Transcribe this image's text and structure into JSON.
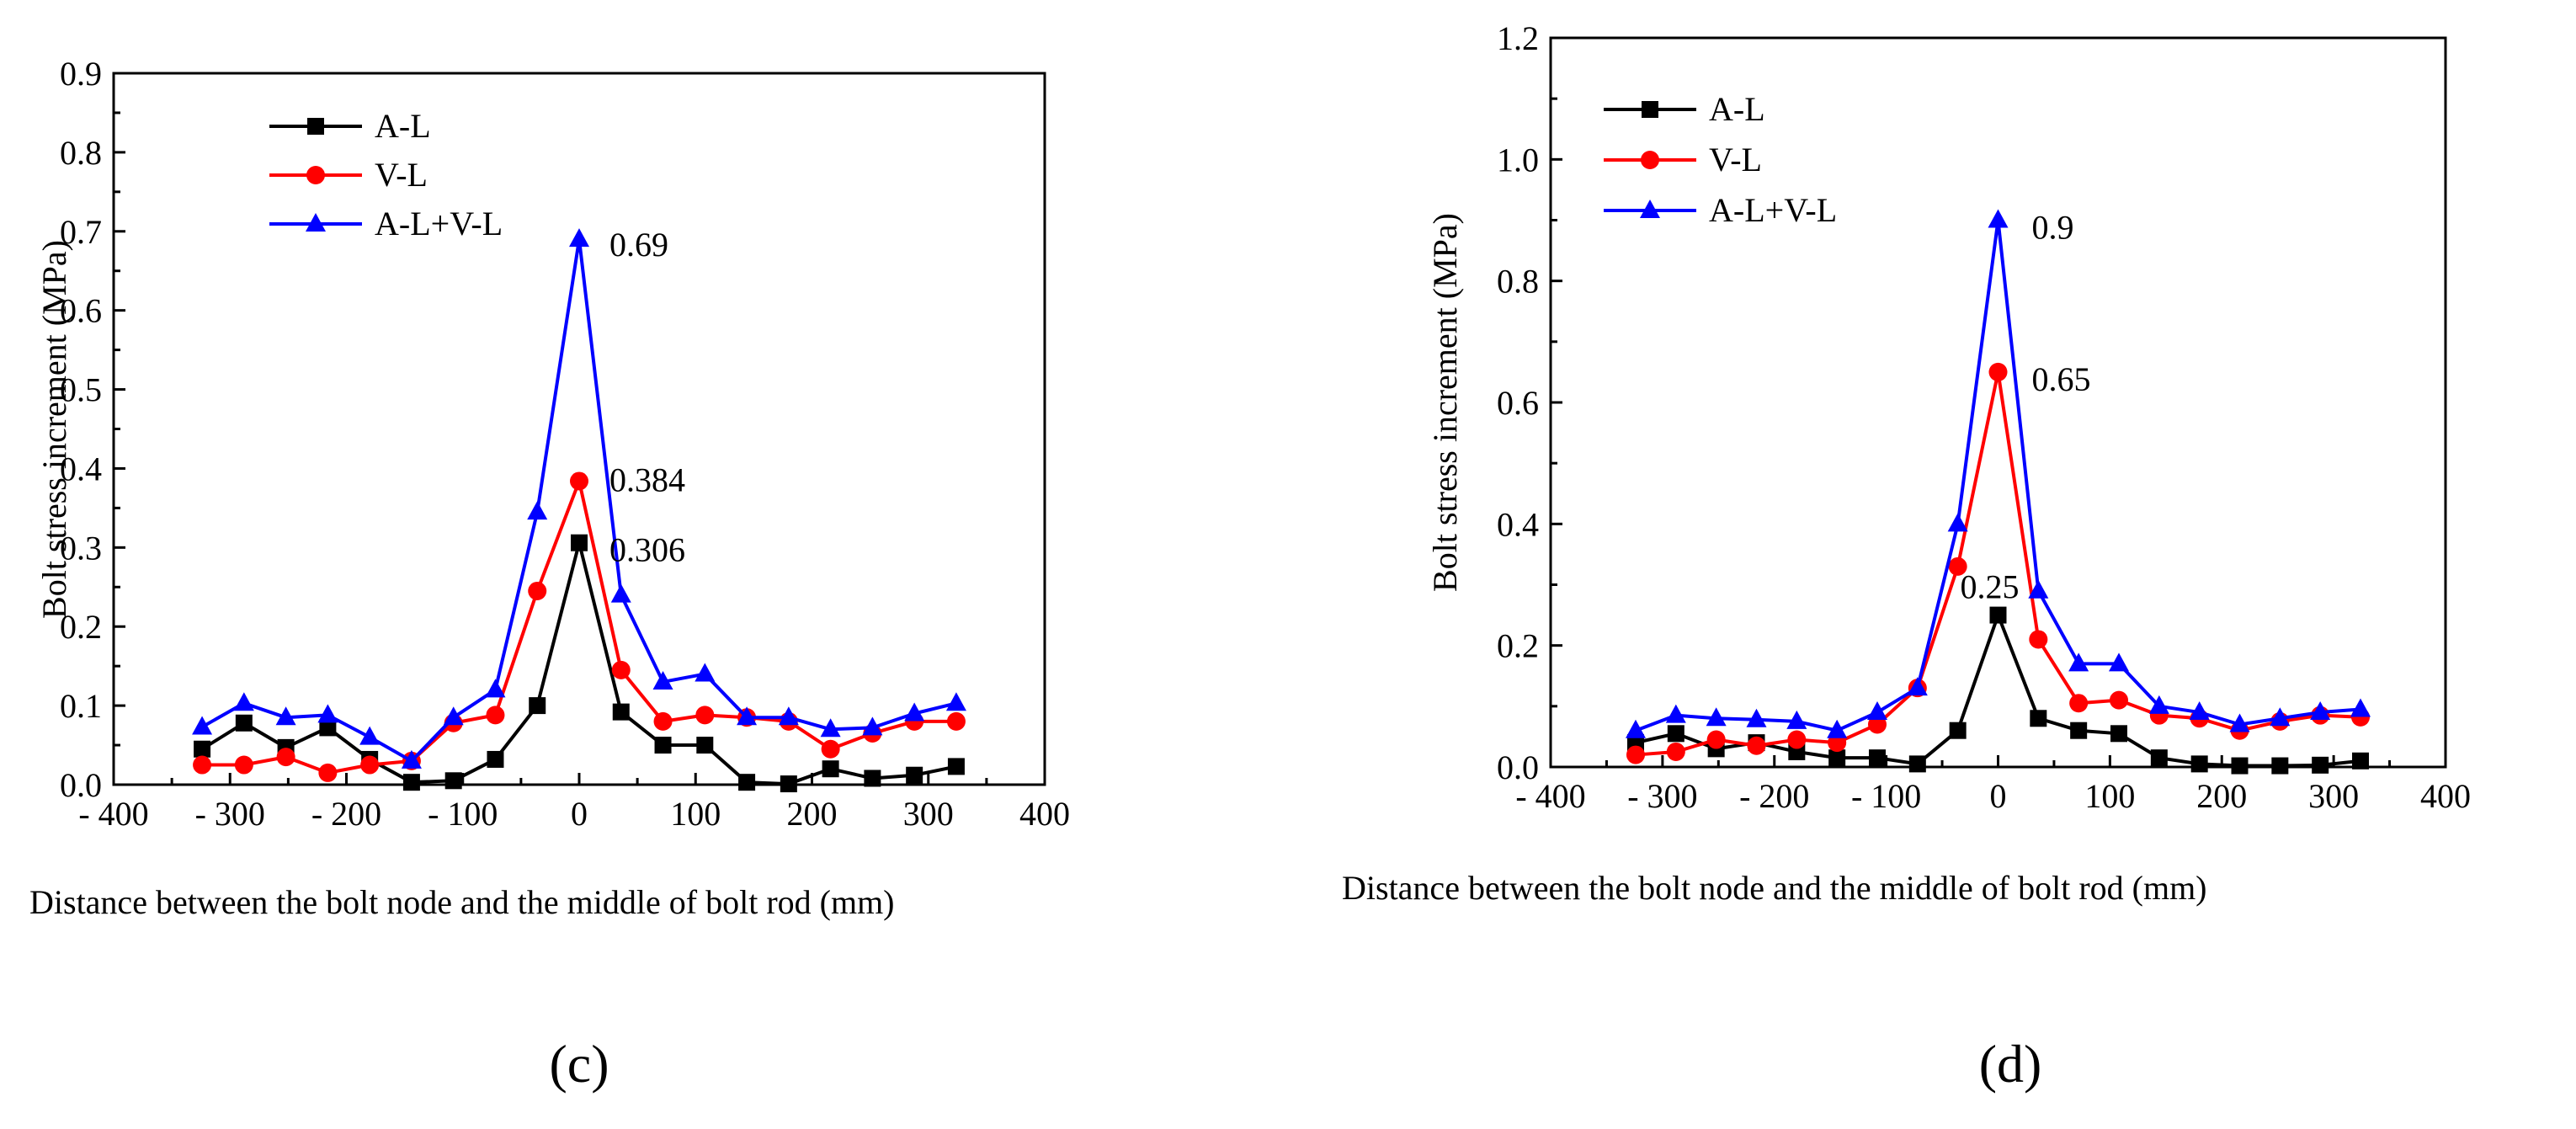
{
  "chart_data": [
    {
      "type": "line",
      "panel_label": "(c)",
      "xlabel": "Distance between the bolt node and the middle of bolt rod (mm)",
      "ylabel": "Bolt stress increment (MPa)",
      "xlim": [
        -400,
        400
      ],
      "ylim": [
        0,
        0.9
      ],
      "xticks": [
        -400,
        -300,
        -200,
        -100,
        0,
        100,
        200,
        300,
        400
      ],
      "xtick_labels": [
        "- 400",
        "- 300",
        "- 200",
        "- 100",
        "0",
        "100",
        "200",
        "300",
        "400"
      ],
      "yticks": [
        0,
        0.1,
        0.2,
        0.3,
        0.4,
        0.5,
        0.6,
        0.7,
        0.8,
        0.9
      ],
      "ytick_labels": [
        "0.0",
        "0.1",
        "0.2",
        "0.3",
        "0.4",
        "0.5",
        "0.6",
        "0.7",
        "0.8",
        "0.9"
      ],
      "legend_position": "top-left",
      "x": [
        -324,
        -288,
        -252,
        -216,
        -180,
        -144,
        -108,
        -72,
        -36,
        0,
        36,
        72,
        108,
        144,
        180,
        216,
        252,
        288,
        324
      ],
      "series": [
        {
          "name": "A-L",
          "color": "#000000",
          "marker": "square",
          "values": [
            0.045,
            0.078,
            0.047,
            0.072,
            0.032,
            0.003,
            0.005,
            0.032,
            0.1,
            0.306,
            0.092,
            0.05,
            0.05,
            0.003,
            0.001,
            0.02,
            0.008,
            0.012,
            0.023
          ]
        },
        {
          "name": "V-L",
          "color": "#ff0000",
          "marker": "circle",
          "values": [
            0.025,
            0.025,
            0.035,
            0.015,
            0.025,
            0.03,
            0.078,
            0.088,
            0.245,
            0.384,
            0.145,
            0.08,
            0.088,
            0.085,
            0.08,
            0.045,
            0.065,
            0.08,
            0.08
          ]
        },
        {
          "name": "A-L+V-L",
          "color": "#0000ff",
          "marker": "triangle",
          "values": [
            0.073,
            0.103,
            0.085,
            0.088,
            0.06,
            0.03,
            0.085,
            0.12,
            0.345,
            0.69,
            0.24,
            0.13,
            0.14,
            0.085,
            0.085,
            0.07,
            0.072,
            0.09,
            0.103
          ]
        }
      ],
      "annotations": [
        {
          "text": "0.69",
          "x": 0,
          "y": 0.69
        },
        {
          "text": "0.384",
          "x": 0,
          "y": 0.384
        },
        {
          "text": "0.306",
          "x": 0,
          "y": 0.306
        }
      ]
    },
    {
      "type": "line",
      "panel_label": "(d)",
      "xlabel": "Distance between the bolt node and the middle of bolt rod (mm)",
      "ylabel": "Bolt stress increment (MPa)",
      "xlim": [
        -400,
        400
      ],
      "ylim": [
        0,
        1.2
      ],
      "xticks": [
        -400,
        -300,
        -200,
        -100,
        0,
        100,
        200,
        300,
        400
      ],
      "xtick_labels": [
        "- 400",
        "- 300",
        "- 200",
        "- 100",
        "0",
        "100",
        "200",
        "300",
        "400"
      ],
      "yticks": [
        0,
        0.2,
        0.4,
        0.6,
        0.8,
        1.0,
        1.2
      ],
      "ytick_labels": [
        "0.0",
        "0.2",
        "0.4",
        "0.6",
        "0.8",
        "1.0",
        "1.2"
      ],
      "legend_position": "top-left",
      "x": [
        -324,
        -288,
        -252,
        -216,
        -180,
        -144,
        -108,
        -72,
        -36,
        0,
        36,
        72,
        108,
        144,
        180,
        216,
        252,
        288,
        324
      ],
      "series": [
        {
          "name": "A-L",
          "color": "#000000",
          "marker": "square",
          "values": [
            0.04,
            0.055,
            0.03,
            0.04,
            0.025,
            0.015,
            0.015,
            0.005,
            0.06,
            0.25,
            0.08,
            0.06,
            0.055,
            0.015,
            0.005,
            0.002,
            0.002,
            0.003,
            0.01
          ]
        },
        {
          "name": "V-L",
          "color": "#ff0000",
          "marker": "circle",
          "values": [
            0.02,
            0.025,
            0.045,
            0.035,
            0.045,
            0.04,
            0.07,
            0.13,
            0.33,
            0.65,
            0.21,
            0.105,
            0.11,
            0.085,
            0.08,
            0.06,
            0.075,
            0.085,
            0.082
          ]
        },
        {
          "name": "A-L+V-L",
          "color": "#0000ff",
          "marker": "triangle",
          "values": [
            0.06,
            0.085,
            0.08,
            0.078,
            0.075,
            0.06,
            0.09,
            0.13,
            0.4,
            0.9,
            0.29,
            0.17,
            0.17,
            0.1,
            0.09,
            0.07,
            0.08,
            0.09,
            0.095
          ]
        }
      ],
      "annotations": [
        {
          "text": "0.9",
          "x": 0,
          "y": 0.9
        },
        {
          "text": "0.65",
          "x": 0,
          "y": 0.65
        },
        {
          "text": "0.25",
          "x": 0,
          "y": 0.25
        }
      ]
    }
  ]
}
